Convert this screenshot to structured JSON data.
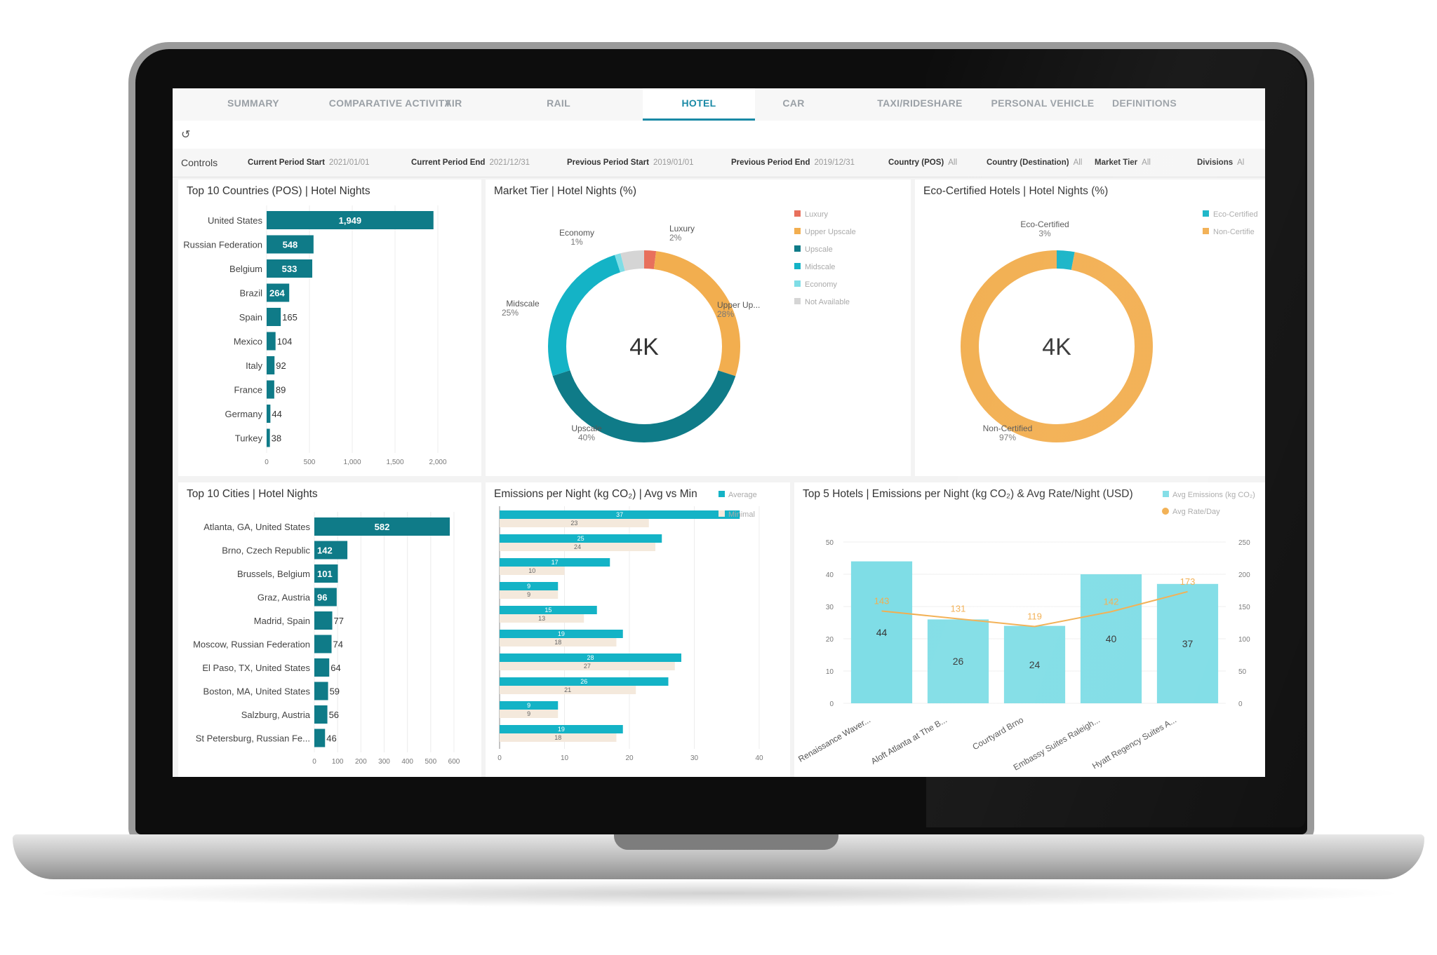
{
  "tabs": [
    {
      "label": "SUMMARY"
    },
    {
      "label": "COMPARATIVE ACTIVITY"
    },
    {
      "label": "AIR"
    },
    {
      "label": "RAIL"
    },
    {
      "label": "HOTEL"
    },
    {
      "label": "CAR"
    },
    {
      "label": "TAXI/RIDESHARE"
    },
    {
      "label": "PERSONAL VEHICLE"
    },
    {
      "label": "DEFINITIONS"
    }
  ],
  "active_tab": "HOTEL",
  "icons": {
    "refresh": "refresh-icon"
  },
  "controls": {
    "title": "Controls",
    "items": [
      {
        "label": "Current Period Start",
        "value": "2021/01/01"
      },
      {
        "label": "Current Period End",
        "value": "2021/12/31"
      },
      {
        "label": "Previous Period Start",
        "value": "2019/01/01"
      },
      {
        "label": "Previous Period End",
        "value": "2019/12/31"
      },
      {
        "label": "Country (POS)",
        "value": "All"
      },
      {
        "label": "Country (Destination)",
        "value": "All"
      },
      {
        "label": "Market Tier",
        "value": "All"
      },
      {
        "label": "Divisions",
        "value": "Al"
      }
    ]
  },
  "colors": {
    "teal_dark": "#0f7b88",
    "teal": "#14b3c6",
    "teal_light": "#7fdde6",
    "orange": "#f2ae4f",
    "red": "#e8705c",
    "gray": "#d5d5d5",
    "beige": "#f4e9dc"
  },
  "chart_data": [
    {
      "id": "countries",
      "type": "bar",
      "title": "Top 10 Countries (POS) | Hotel Nights",
      "categories": [
        "United States",
        "Russian Federation",
        "Belgium",
        "Brazil",
        "Spain",
        "Mexico",
        "Italy",
        "France",
        "Germany",
        "Turkey"
      ],
      "values": [
        1949,
        548,
        533,
        264,
        165,
        104,
        92,
        89,
        44,
        38
      ],
      "value_labels": [
        "1,949",
        "548",
        "533",
        "264",
        "165",
        "104",
        "92",
        "89",
        "44",
        "38"
      ],
      "xticks": [
        "0",
        "500",
        "1,000",
        "1,500",
        "2,000"
      ],
      "xlim": [
        0,
        2000
      ]
    },
    {
      "id": "market_tier",
      "type": "pie",
      "title": "Market Tier | Hotel Nights (%)",
      "center_label": "4K",
      "slices": [
        {
          "name": "Luxury",
          "value": 2,
          "label": "Luxury",
          "pct": "2%",
          "color": "#e8705c"
        },
        {
          "name": "Upper Upscale",
          "value": 28,
          "label": "Upper Up...",
          "pct": "28%",
          "color": "#f2ae4f"
        },
        {
          "name": "Upscale",
          "value": 40,
          "label": "Upscale",
          "pct": "40%",
          "color": "#0f7b88"
        },
        {
          "name": "Midscale",
          "value": 25,
          "label": "Midscale",
          "pct": "25%",
          "color": "#14b3c6"
        },
        {
          "name": "Economy",
          "value": 1,
          "label": "Economy",
          "pct": "1%",
          "color": "#7fdde6"
        },
        {
          "name": "Not Available",
          "value": 4,
          "label": "",
          "pct": "",
          "color": "#d5d5d5"
        }
      ],
      "legend": [
        "Luxury",
        "Upper Upscale",
        "Upscale",
        "Midscale",
        "Economy",
        "Not Available"
      ]
    },
    {
      "id": "eco",
      "type": "pie",
      "title": "Eco-Certified Hotels | Hotel Nights (%)",
      "center_label": "4K",
      "slices": [
        {
          "name": "Eco-Certified",
          "value": 3,
          "label": "Eco-Certified",
          "pct": "3%",
          "color": "#14b3c6"
        },
        {
          "name": "Non-Certified",
          "value": 97,
          "label": "Non-Certified",
          "pct": "97%",
          "color": "#f2ae4f"
        }
      ],
      "legend": [
        "Eco-Certified",
        "Non-Certifie"
      ]
    },
    {
      "id": "cities",
      "type": "bar",
      "title": "Top 10 Cities | Hotel Nights",
      "categories": [
        "Atlanta, GA, United States",
        "Brno, Czech Republic",
        "Brussels, Belgium",
        "Graz, Austria",
        "Madrid, Spain",
        "Moscow, Russian Federation",
        "El Paso, TX, United States",
        "Boston, MA, United States",
        "Salzburg, Austria",
        "St Petersburg, Russian Fe..."
      ],
      "values": [
        582,
        142,
        101,
        96,
        77,
        74,
        64,
        59,
        56,
        46
      ],
      "xticks": [
        "0",
        "100",
        "200",
        "300",
        "400",
        "500",
        "600"
      ],
      "xlim": [
        0,
        600
      ]
    },
    {
      "id": "emissions",
      "type": "bar",
      "title": "Emissions per Night (kg CO₂) | Avg vs Min",
      "series": [
        {
          "name": "Average",
          "values": [
            37,
            25,
            17,
            9,
            15,
            19,
            28,
            26,
            9,
            19
          ]
        },
        {
          "name": "Minimal",
          "values": [
            23,
            24,
            10,
            9,
            13,
            18,
            27,
            21,
            9,
            18
          ]
        }
      ],
      "xticks": [
        "0",
        "10",
        "20",
        "30",
        "40"
      ],
      "xlim": [
        0,
        40
      ]
    },
    {
      "id": "top_hotels",
      "type": "bar",
      "title": "Top 5 Hotels | Emissions per Night (kg CO₂) & Avg Rate/Night (USD)",
      "categories": [
        "Renaissance Waver...",
        "Aloft Atlanta at The B...",
        "Courtyard Brno",
        "Embassy Suites Raleigh...",
        "Hyatt Regency Suites A..."
      ],
      "series": [
        {
          "name": "Avg Emissions (kg CO₂)",
          "values": [
            44,
            26,
            24,
            40,
            37
          ]
        },
        {
          "name": "Avg Rate/Day",
          "values": [
            143,
            131,
            119,
            142,
            173
          ]
        }
      ],
      "yticks_left": [
        "0",
        "10",
        "20",
        "30",
        "40",
        "50"
      ],
      "yticks_right": [
        "0",
        "50",
        "100",
        "150",
        "200",
        "250"
      ],
      "ylim_left": [
        0,
        50
      ],
      "ylim_right": [
        0,
        250
      ]
    }
  ]
}
